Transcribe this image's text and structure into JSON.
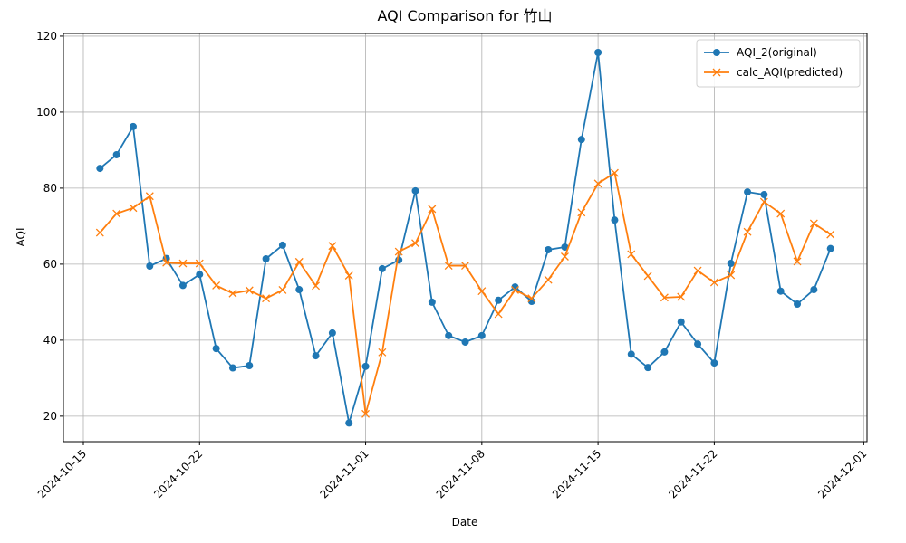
{
  "chart_data": {
    "type": "line",
    "title": "AQI Comparison for 竹山",
    "xlabel": "Date",
    "ylabel": "AQI",
    "x": [
      "2024-10-16",
      "2024-10-17",
      "2024-10-18",
      "2024-10-19",
      "2024-10-20",
      "2024-10-21",
      "2024-10-22",
      "2024-10-23",
      "2024-10-24",
      "2024-10-25",
      "2024-10-26",
      "2024-10-27",
      "2024-10-28",
      "2024-10-29",
      "2024-10-30",
      "2024-10-31",
      "2024-11-01",
      "2024-11-02",
      "2024-11-03",
      "2024-11-04",
      "2024-11-05",
      "2024-11-06",
      "2024-11-07",
      "2024-11-08",
      "2024-11-09",
      "2024-11-10",
      "2024-11-11",
      "2024-11-12",
      "2024-11-13",
      "2024-11-14",
      "2024-11-15",
      "2024-11-16",
      "2024-11-17",
      "2024-11-18",
      "2024-11-19",
      "2024-11-20",
      "2024-11-21",
      "2024-11-22",
      "2024-11-23",
      "2024-11-24",
      "2024-11-25",
      "2024-11-26",
      "2024-11-27",
      "2024-11-28",
      "2024-11-29"
    ],
    "series": [
      {
        "name": "AQI_2(original)",
        "color": "#1f77b4",
        "marker": "o",
        "values": [
          85.2,
          88.8,
          96.2,
          59.5,
          61.5,
          54.4,
          57.3,
          37.8,
          32.7,
          33.3,
          61.4,
          65,
          53.3,
          35.9,
          41.9,
          18.2,
          33.1,
          58.8,
          61.1,
          79.3,
          50,
          41.2,
          39.5,
          41.2,
          50.5,
          54,
          50.2,
          63.8,
          64.5,
          92.8,
          115.7,
          71.6,
          36.3,
          32.8,
          36.9,
          44.8,
          39,
          34,
          60.2,
          79,
          78.3,
          52.9,
          49.5,
          53.3,
          64.1
        ]
      },
      {
        "name": "calc_AQI(predicted)",
        "color": "#ff7f0e",
        "marker": "x",
        "values": [
          68.3,
          73.3,
          74.8,
          77.9,
          60.4,
          60.2,
          60.2,
          54.4,
          52.3,
          53.1,
          51,
          53.2,
          60.6,
          54.3,
          64.8,
          57,
          20.6,
          36.8,
          63.3,
          65.5,
          74.5,
          59.6,
          59.6,
          52.9,
          46.9,
          53.2,
          51,
          55.9,
          62,
          73.6,
          81.2,
          84,
          62.6,
          56.9,
          51.2,
          51.4,
          58.3,
          55.2,
          57.1,
          68.5,
          76.4,
          73.3,
          60.7,
          70.7,
          67.8
        ]
      }
    ],
    "xlim": [
      "2024-10-13T19:12:00Z",
      "2024-12-01T04:48:00Z"
    ],
    "xticks": [
      "2024-10-15",
      "2024-10-22",
      "2024-11-01",
      "2024-11-08",
      "2024-11-15",
      "2024-11-22",
      "2024-12-01"
    ],
    "ylim": [
      13.3,
      120.7
    ],
    "yticks": [
      20,
      40,
      60,
      80,
      100,
      120
    ],
    "grid": true,
    "legend": "upper right"
  }
}
